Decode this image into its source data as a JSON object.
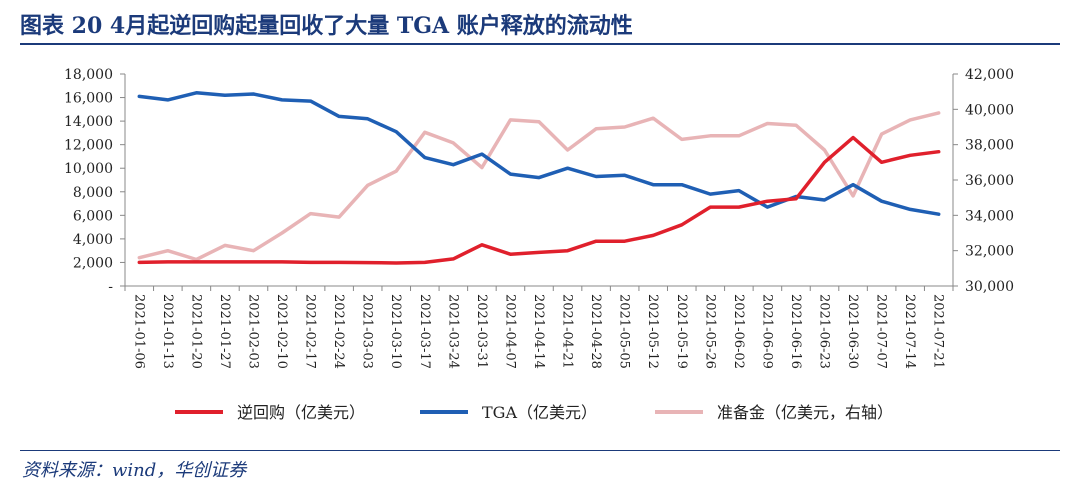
{
  "figure": {
    "title": "图表 20   4月起逆回购起量回收了大量 TGA 账户释放的流动性",
    "source": "资料来源：wind，华创证券"
  },
  "chart_data": {
    "type": "line",
    "categories": [
      "2021-01-06",
      "2021-01-13",
      "2021-01-20",
      "2021-01-27",
      "2021-02-03",
      "2021-02-10",
      "2021-02-17",
      "2021-02-24",
      "2021-03-03",
      "2021-03-10",
      "2021-03-17",
      "2021-03-24",
      "2021-03-31",
      "2021-04-07",
      "2021-04-14",
      "2021-04-21",
      "2021-04-28",
      "2021-05-05",
      "2021-05-12",
      "2021-05-19",
      "2021-05-26",
      "2021-06-02",
      "2021-06-09",
      "2021-06-16",
      "2021-06-23",
      "2021-06-30",
      "2021-07-07",
      "2021-07-14",
      "2021-07-21"
    ],
    "series": [
      {
        "name": "逆回购（亿美元）",
        "axis": "left",
        "color": "#e0202c",
        "values": [
          2000,
          2050,
          2050,
          2050,
          2050,
          2050,
          2000,
          2000,
          1990,
          1950,
          2000,
          2300,
          3500,
          2700,
          2850,
          3000,
          3800,
          3800,
          4300,
          5200,
          6700,
          6700,
          7200,
          7400,
          10500,
          12600,
          10500,
          11100,
          11400
        ]
      },
      {
        "name": "TGA（亿美元）",
        "axis": "left",
        "color": "#1f5fb4",
        "values": [
          16100,
          15800,
          16400,
          16200,
          16300,
          15800,
          15700,
          14400,
          14200,
          13100,
          10900,
          10300,
          11200,
          9500,
          9200,
          10000,
          9300,
          9400,
          8600,
          8600,
          7800,
          8100,
          6700,
          7600,
          7300,
          8600,
          7200,
          6500,
          6100
        ]
      },
      {
        "name": "准备金（亿美元，右轴）",
        "axis": "right",
        "color": "#e8b4b6",
        "values": [
          31600,
          32000,
          31500,
          32300,
          32000,
          33000,
          34100,
          33900,
          35700,
          36500,
          38700,
          38100,
          36700,
          39400,
          39300,
          37700,
          38900,
          39000,
          39500,
          38300,
          38500,
          38500,
          39200,
          39100,
          37700,
          35100,
          38600,
          39400,
          39800
        ]
      }
    ],
    "y_left": {
      "min": 0,
      "max": 18000,
      "step": 2000,
      "tick_labels": [
        "-",
        "2,000",
        "4,000",
        "6,000",
        "8,000",
        "10,000",
        "12,000",
        "14,000",
        "16,000",
        "18,000"
      ]
    },
    "y_right": {
      "min": 30000,
      "max": 42000,
      "step": 2000,
      "tick_labels": [
        "30,000",
        "32,000",
        "34,000",
        "36,000",
        "38,000",
        "40,000",
        "42,000"
      ]
    },
    "grid": false,
    "legend_position": "bottom"
  }
}
